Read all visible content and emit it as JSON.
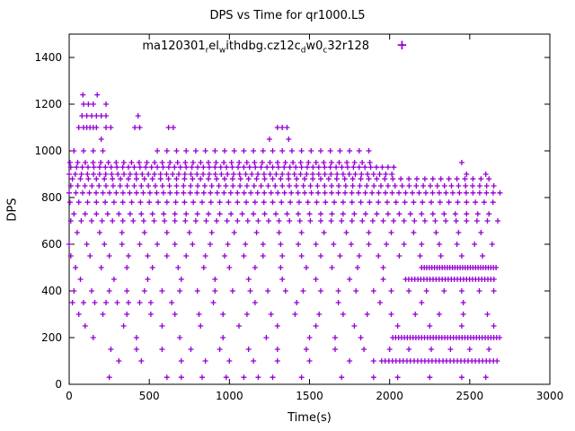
{
  "chart_data": {
    "type": "scatter",
    "title": "DPS vs Time for qr1000.L5",
    "xlabel": "Time(s)",
    "ylabel": "DPS",
    "xlim": [
      0,
      3000
    ],
    "ylim": [
      0,
      1500
    ],
    "xticks": [
      0,
      500,
      1000,
      1500,
      2000,
      2500,
      3000
    ],
    "yticks": [
      0,
      200,
      400,
      600,
      800,
      1000,
      1200,
      1400
    ],
    "grid": false,
    "legend_position": "top-center-inside",
    "marker": "plus",
    "marker_color": "#9400d3",
    "legend_segments": [
      {
        "t": "ma120301"
      },
      {
        "t": "r",
        "sub": true
      },
      {
        "t": "el"
      },
      {
        "t": "w",
        "sub": true
      },
      {
        "t": "ithdbg.cz12c"
      },
      {
        "t": "d",
        "sub": true
      },
      {
        "t": "w0"
      },
      {
        "t": "c",
        "sub": true
      },
      {
        "t": "32r128"
      }
    ],
    "series_name": "ma120301_rel_withdbg.cz12c_dw0_c32r128",
    "rows": [
      {
        "y": 30,
        "xs": [
          250,
          610,
          700,
          830,
          980,
          1090,
          1180,
          1270,
          1450,
          1700,
          1900,
          2050,
          2250,
          2450,
          2600
        ]
      },
      {
        "y": 100,
        "xs": [
          310,
          450,
          700,
          850,
          1000,
          1150,
          1300,
          1500,
          1750,
          1900,
          1950,
          1972,
          1995,
          2018,
          2040,
          2063,
          2085,
          2108,
          2130,
          2153,
          2175,
          2198,
          2220,
          2243,
          2265,
          2288,
          2310,
          2333,
          2355,
          2378,
          2400,
          2423,
          2445,
          2468,
          2490,
          2513,
          2535,
          2558,
          2580,
          2603,
          2625,
          2648,
          2670
        ]
      },
      {
        "y": 150,
        "xs": [
          260,
          420,
          580,
          760,
          940,
          1120,
          1300,
          1480,
          1660,
          1840,
          2000,
          2120,
          2260,
          2380,
          2500,
          2620
        ]
      },
      {
        "y": 200,
        "xs": [
          150,
          420,
          690,
          960,
          1230,
          1500,
          1660,
          1820,
          2020,
          2038,
          2056,
          2074,
          2092,
          2110,
          2128,
          2146,
          2164,
          2182,
          2200,
          2218,
          2236,
          2254,
          2272,
          2290,
          2308,
          2326,
          2344,
          2362,
          2380,
          2398,
          2416,
          2434,
          2452,
          2470,
          2488,
          2506,
          2524,
          2542,
          2560,
          2578,
          2596,
          2614,
          2632,
          2650,
          2668,
          2686
        ]
      },
      {
        "y": 250,
        "xs": [
          100,
          340,
          580,
          820,
          1060,
          1300,
          1540,
          1780,
          2050,
          2250,
          2450,
          2650
        ]
      },
      {
        "y": 300,
        "xs": [
          60,
          210,
          360,
          510,
          660,
          810,
          960,
          1110,
          1260,
          1410,
          1560,
          1710,
          1860,
          2010,
          2160,
          2310,
          2460,
          2610
        ]
      },
      {
        "y": 350,
        "xs": [
          20,
          90,
          160,
          230,
          300,
          370,
          440,
          510,
          640,
          900,
          1160,
          1420,
          1680,
          1940,
          2200,
          2460
        ]
      },
      {
        "y": 400,
        "xs": [
          30,
          140,
          250,
          360,
          470,
          580,
          690,
          800,
          910,
          1020,
          1130,
          1240,
          1350,
          1460,
          1570,
          1680,
          1790,
          1900,
          2010,
          2120,
          2230,
          2340,
          2450,
          2560,
          2650
        ]
      },
      {
        "y": 450,
        "xs": [
          70,
          280,
          490,
          700,
          910,
          1120,
          1330,
          1540,
          1750,
          1960,
          2100,
          2119,
          2138,
          2157,
          2176,
          2195,
          2214,
          2233,
          2252,
          2271,
          2290,
          2309,
          2328,
          2347,
          2366,
          2385,
          2404,
          2423,
          2442,
          2461,
          2480,
          2499,
          2518,
          2537,
          2556,
          2575,
          2594,
          2613,
          2632,
          2651
        ]
      },
      {
        "y": 500,
        "xs": [
          40,
          200,
          360,
          520,
          680,
          840,
          1000,
          1160,
          1320,
          1480,
          1640,
          1800,
          1960,
          2200,
          2216,
          2232,
          2248,
          2264,
          2280,
          2296,
          2312,
          2328,
          2344,
          2360,
          2376,
          2392,
          2408,
          2424,
          2440,
          2456,
          2472,
          2488,
          2504,
          2520,
          2536,
          2552,
          2568,
          2584,
          2600,
          2616,
          2632,
          2648,
          2664
        ]
      },
      {
        "y": 550,
        "xs": [
          10,
          130,
          250,
          370,
          490,
          610,
          730,
          850,
          970,
          1090,
          1210,
          1330,
          1450,
          1570,
          1690,
          1810,
          1930,
          2060,
          2190,
          2320,
          2450,
          2580
        ]
      },
      {
        "y": 600,
        "xs": [
          0,
          110,
          220,
          330,
          440,
          550,
          660,
          770,
          880,
          990,
          1100,
          1210,
          1320,
          1430,
          1540,
          1650,
          1760,
          1870,
          1980,
          2090,
          2200,
          2310,
          2420,
          2530,
          2640
        ]
      },
      {
        "y": 650,
        "xs": [
          50,
          190,
          330,
          470,
          610,
          750,
          890,
          1030,
          1170,
          1310,
          1450,
          1590,
          1730,
          1870,
          2010,
          2150,
          2290,
          2430,
          2570
        ]
      },
      {
        "y": 700,
        "xs": [
          10,
          75,
          140,
          205,
          270,
          335,
          400,
          465,
          530,
          595,
          660,
          725,
          790,
          855,
          920,
          985,
          1050,
          1115,
          1180,
          1245,
          1310,
          1375,
          1440,
          1505,
          1570,
          1635,
          1700,
          1765,
          1830,
          1895,
          1960,
          2025,
          2090,
          2155,
          2220,
          2285,
          2350,
          2415,
          2480,
          2545,
          2610,
          2675
        ]
      },
      {
        "y": 730,
        "xs": [
          30,
          100,
          170,
          240,
          310,
          380,
          450,
          520,
          590,
          660,
          730,
          800,
          870,
          940,
          1010,
          1080,
          1150,
          1220,
          1290,
          1360,
          1430,
          1500,
          1570,
          1640,
          1710,
          1780,
          1850,
          1920,
          1990,
          2060,
          2130,
          2200,
          2270,
          2340,
          2410,
          2480,
          2550,
          2620
        ]
      },
      {
        "y": 780,
        "xs": [
          5,
          60,
          115,
          170,
          225,
          280,
          335,
          390,
          445,
          500,
          555,
          610,
          665,
          720,
          775,
          830,
          885,
          940,
          995,
          1050,
          1105,
          1160,
          1215,
          1270,
          1325,
          1380,
          1435,
          1490,
          1545,
          1600,
          1655,
          1710,
          1765,
          1820,
          1875,
          1930,
          1985,
          2040,
          2095,
          2150,
          2205,
          2260,
          2315,
          2370,
          2425,
          2480,
          2535,
          2590,
          2645
        ]
      },
      {
        "y": 820,
        "xs": [
          0,
          42,
          84,
          126,
          168,
          210,
          252,
          294,
          336,
          378,
          420,
          462,
          504,
          546,
          588,
          630,
          672,
          714,
          756,
          798,
          840,
          882,
          924,
          966,
          1008,
          1050,
          1092,
          1134,
          1176,
          1218,
          1260,
          1302,
          1344,
          1386,
          1428,
          1470,
          1512,
          1554,
          1596,
          1638,
          1680,
          1722,
          1764,
          1806,
          1848,
          1890,
          1932,
          1974,
          2016,
          2058,
          2100,
          2142,
          2184,
          2226,
          2268,
          2310,
          2352,
          2394,
          2436,
          2478,
          2520,
          2562,
          2604,
          2646,
          2688
        ]
      },
      {
        "y": 850,
        "xs": [
          10,
          54,
          98,
          142,
          186,
          230,
          274,
          318,
          362,
          406,
          450,
          494,
          538,
          582,
          626,
          670,
          714,
          758,
          802,
          846,
          890,
          934,
          978,
          1022,
          1066,
          1110,
          1154,
          1198,
          1242,
          1286,
          1330,
          1374,
          1418,
          1462,
          1506,
          1550,
          1594,
          1638,
          1682,
          1726,
          1770,
          1814,
          1858,
          1902,
          1946,
          1990,
          2034,
          2078,
          2122,
          2166,
          2210,
          2254,
          2298,
          2342,
          2386,
          2430,
          2474,
          2518,
          2562,
          2606,
          2650
        ]
      },
      {
        "y": 880,
        "xs": [
          20,
          70,
          120,
          170,
          220,
          270,
          320,
          370,
          420,
          470,
          520,
          570,
          620,
          670,
          720,
          770,
          820,
          870,
          920,
          970,
          1020,
          1070,
          1120,
          1170,
          1220,
          1270,
          1320,
          1370,
          1420,
          1470,
          1520,
          1570,
          1620,
          1670,
          1720,
          1770,
          1820,
          1870,
          1920,
          1970,
          2020,
          2070,
          2120,
          2170,
          2220,
          2270,
          2320,
          2370,
          2420,
          2470,
          2520,
          2570,
          2620
        ]
      },
      {
        "y": 900,
        "xs": [
          0,
          38,
          76,
          114,
          152,
          190,
          228,
          266,
          304,
          342,
          380,
          418,
          456,
          494,
          532,
          570,
          608,
          646,
          684,
          722,
          760,
          798,
          836,
          874,
          912,
          950,
          988,
          1026,
          1064,
          1102,
          1140,
          1178,
          1216,
          1254,
          1292,
          1330,
          1368,
          1406,
          1444,
          1482,
          1520,
          1558,
          1596,
          1634,
          1672,
          1710,
          1748,
          1786,
          1824,
          1862,
          1900,
          1938,
          1976,
          2014,
          2480,
          2600
        ]
      },
      {
        "y": 930,
        "xs": [
          10,
          46,
          82,
          118,
          154,
          190,
          226,
          262,
          298,
          334,
          370,
          406,
          442,
          478,
          514,
          550,
          586,
          622,
          658,
          694,
          730,
          766,
          802,
          838,
          874,
          910,
          946,
          982,
          1018,
          1054,
          1090,
          1126,
          1162,
          1198,
          1234,
          1270,
          1306,
          1342,
          1378,
          1414,
          1450,
          1486,
          1522,
          1558,
          1594,
          1630,
          1666,
          1702,
          1738,
          1774,
          1810,
          1846,
          1882,
          1918,
          1954,
          1990,
          2026
        ]
      },
      {
        "y": 950,
        "xs": [
          5,
          53,
          101,
          149,
          197,
          245,
          293,
          341,
          389,
          437,
          485,
          533,
          581,
          629,
          677,
          725,
          773,
          821,
          869,
          917,
          965,
          1013,
          1061,
          1109,
          1157,
          1205,
          1253,
          1301,
          1349,
          1397,
          1445,
          1493,
          1541,
          1589,
          1637,
          1685,
          1733,
          1781,
          1829,
          1877,
          2450
        ]
      },
      {
        "y": 1000,
        "xs": [
          30,
          90,
          150,
          210,
          550,
          610,
          670,
          730,
          790,
          850,
          910,
          970,
          1030,
          1090,
          1150,
          1210,
          1270,
          1330,
          1390,
          1450,
          1510,
          1570,
          1630,
          1690,
          1750,
          1810,
          1870
        ]
      },
      {
        "y": 1050,
        "xs": [
          200,
          1250,
          1370
        ]
      },
      {
        "y": 1100,
        "xs": [
          60,
          90,
          110,
          130,
          150,
          170,
          230,
          260,
          410,
          440,
          620,
          650,
          1300,
          1330,
          1360
        ]
      },
      {
        "y": 1150,
        "xs": [
          80,
          110,
          140,
          170,
          200,
          230,
          430
        ]
      },
      {
        "y": 1200,
        "xs": [
          90,
          120,
          150,
          230
        ]
      },
      {
        "y": 1240,
        "xs": [
          85,
          175
        ]
      }
    ]
  }
}
